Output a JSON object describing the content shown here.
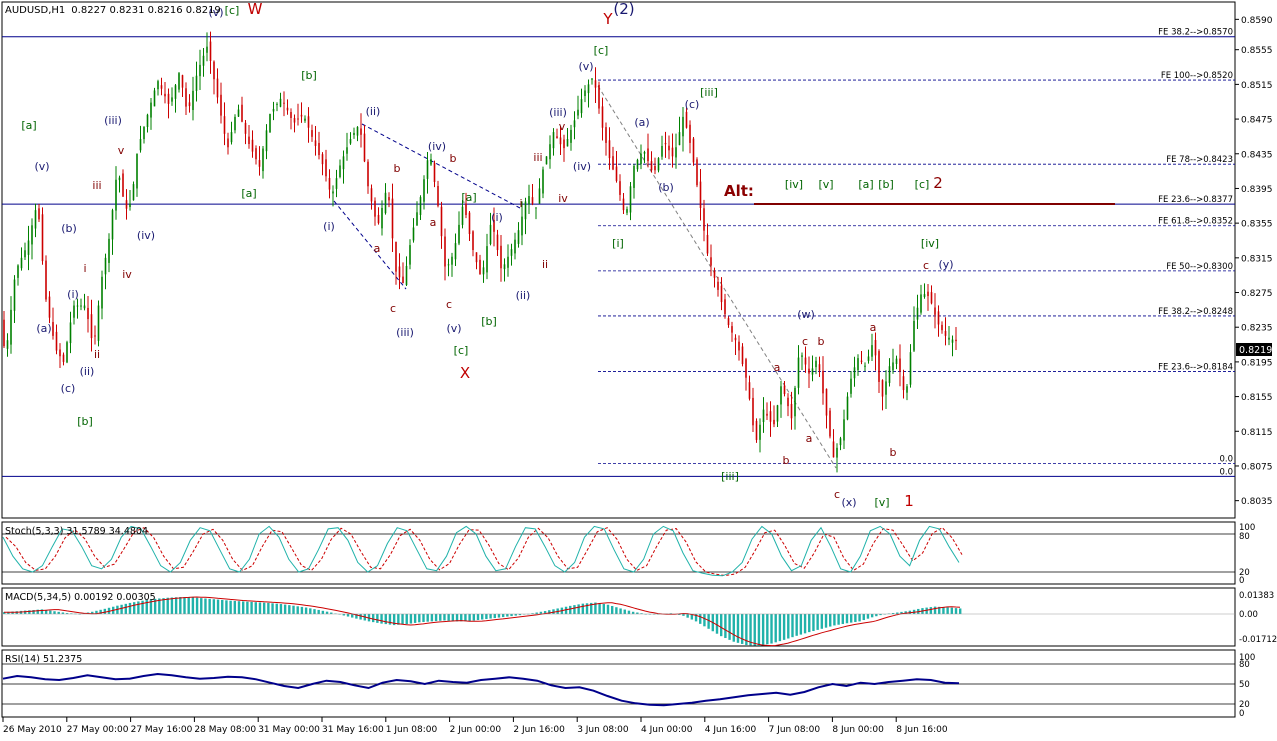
{
  "chart_data": {
    "type": "candlestick",
    "symbol_header": "AUDUSD,H1",
    "ohlc_header": "0.8227 0.8231 0.8216 0.8219",
    "current_price": "0.8219",
    "price_axis": {
      "ylim": [
        0.8015,
        0.861
      ],
      "ticks": [
        "0.8590",
        "0.8555",
        "0.8515",
        "0.8475",
        "0.8435",
        "0.8395",
        "0.8355",
        "0.8315",
        "0.8275",
        "0.8235",
        "0.8195",
        "0.8155",
        "0.8115",
        "0.8075",
        "0.8035"
      ]
    },
    "x_ticks": [
      "26 May 2010",
      "27 May 00:00",
      "27 May 16:00",
      "28 May 08:00",
      "31 May 00:00",
      "31 May 16:00",
      "1 Jun 08:00",
      "2 Jun 00:00",
      "2 Jun 16:00",
      "3 Jun 08:00",
      "4 Jun 00:00",
      "4 Jun 16:00",
      "7 Jun 08:00",
      "8 Jun 00:00",
      "8 Jun 16:00"
    ],
    "price_path": [
      [
        0,
        0.827
      ],
      [
        8,
        0.82
      ],
      [
        18,
        0.83
      ],
      [
        30,
        0.833
      ],
      [
        40,
        0.838
      ],
      [
        48,
        0.827
      ],
      [
        58,
        0.821
      ],
      [
        66,
        0.8195
      ],
      [
        76,
        0.826
      ],
      [
        88,
        0.826
      ],
      [
        96,
        0.821
      ],
      [
        104,
        0.829
      ],
      [
        112,
        0.834
      ],
      [
        120,
        0.842
      ],
      [
        128,
        0.837
      ],
      [
        134,
        0.838
      ],
      [
        140,
        0.844
      ],
      [
        150,
        0.848
      ],
      [
        160,
        0.852
      ],
      [
        172,
        0.849
      ],
      [
        182,
        0.853
      ],
      [
        190,
        0.848
      ],
      [
        200,
        0.853
      ],
      [
        210,
        0.856
      ],
      [
        220,
        0.85
      ],
      [
        230,
        0.844
      ],
      [
        240,
        0.849
      ],
      [
        250,
        0.845
      ],
      [
        262,
        0.842
      ],
      [
        272,
        0.848
      ],
      [
        284,
        0.85
      ],
      [
        296,
        0.847
      ],
      [
        306,
        0.848
      ],
      [
        316,
        0.845
      ],
      [
        326,
        0.842
      ],
      [
        334,
        0.8385
      ],
      [
        342,
        0.842
      ],
      [
        352,
        0.845
      ],
      [
        362,
        0.847
      ],
      [
        370,
        0.84
      ],
      [
        380,
        0.835
      ],
      [
        390,
        0.84
      ],
      [
        398,
        0.83
      ],
      [
        406,
        0.8285
      ],
      [
        414,
        0.834
      ],
      [
        424,
        0.839
      ],
      [
        432,
        0.844
      ],
      [
        440,
        0.838
      ],
      [
        448,
        0.83
      ],
      [
        456,
        0.832
      ],
      [
        466,
        0.838
      ],
      [
        474,
        0.833
      ],
      [
        484,
        0.829
      ],
      [
        494,
        0.836
      ],
      [
        504,
        0.83
      ],
      [
        514,
        0.8325
      ],
      [
        522,
        0.835
      ],
      [
        530,
        0.839
      ],
      [
        538,
        0.837
      ],
      [
        546,
        0.842
      ],
      [
        556,
        0.846
      ],
      [
        566,
        0.844
      ],
      [
        576,
        0.847
      ],
      [
        586,
        0.8505
      ],
      [
        596,
        0.8525
      ],
      [
        604,
        0.847
      ],
      [
        612,
        0.843
      ],
      [
        620,
        0.84
      ],
      [
        628,
        0.836
      ],
      [
        636,
        0.842
      ],
      [
        646,
        0.844
      ],
      [
        656,
        0.841
      ],
      [
        666,
        0.845
      ],
      [
        676,
        0.843
      ],
      [
        686,
        0.848
      ],
      [
        694,
        0.844
      ],
      [
        702,
        0.838
      ],
      [
        710,
        0.832
      ],
      [
        720,
        0.828
      ],
      [
        730,
        0.824
      ],
      [
        740,
        0.8215
      ],
      [
        750,
        0.817
      ],
      [
        758,
        0.81
      ],
      [
        766,
        0.814
      ],
      [
        776,
        0.812
      ],
      [
        784,
        0.817
      ],
      [
        794,
        0.813
      ],
      [
        802,
        0.821
      ],
      [
        812,
        0.818
      ],
      [
        820,
        0.82
      ],
      [
        828,
        0.814
      ],
      [
        836,
        0.8085
      ],
      [
        844,
        0.811
      ],
      [
        852,
        0.817
      ],
      [
        860,
        0.82
      ],
      [
        868,
        0.819
      ],
      [
        876,
        0.822
      ],
      [
        884,
        0.815
      ],
      [
        892,
        0.819
      ],
      [
        900,
        0.82
      ],
      [
        908,
        0.815
      ],
      [
        916,
        0.824
      ],
      [
        924,
        0.8275
      ],
      [
        932,
        0.827
      ],
      [
        940,
        0.824
      ],
      [
        948,
        0.8225
      ],
      [
        958,
        0.8219
      ]
    ],
    "fib_levels": [
      {
        "label": "FE 38.2-->0.8570",
        "price": 0.857,
        "style": "solid"
      },
      {
        "label": "FE 100-->0.8520",
        "price": 0.852,
        "style": "dashed"
      },
      {
        "label": "FE 78-->0.8423",
        "price": 0.8423,
        "style": "dashed"
      },
      {
        "label": "FE 23.6-->0.8377",
        "price": 0.8377,
        "style": "solid"
      },
      {
        "label": "FE 61.8-->0.8352",
        "price": 0.8352,
        "style": "dashed"
      },
      {
        "label": "FE 50-->0.8300",
        "price": 0.83,
        "style": "dashed"
      },
      {
        "label": "FE 38.2-->0.8248",
        "price": 0.8248,
        "style": "dashed"
      },
      {
        "label": "FE 23.6-->0.8184",
        "price": 0.8184,
        "style": "dashed"
      },
      {
        "label": "0.0",
        "price": 0.8078,
        "style": "dashed"
      },
      {
        "label": "0.0",
        "price": 0.8063,
        "style": "solid"
      }
    ],
    "alt_label": "Alt:",
    "wave_labels": [
      {
        "t": "(v)",
        "x": 216,
        "y": 16,
        "c": "#191970"
      },
      {
        "t": "[c]",
        "x": 232,
        "y": 14,
        "c": "#006400"
      },
      {
        "t": "W",
        "x": 255,
        "y": 14,
        "c": "#c00000"
      },
      {
        "t": "Y",
        "x": 608,
        "y": 24,
        "c": "#c00000"
      },
      {
        "t": "(2)",
        "x": 624,
        "y": 14,
        "c": "#191970"
      },
      {
        "t": "[c]",
        "x": 601,
        "y": 54,
        "c": "#006400"
      },
      {
        "t": "(v)",
        "x": 586,
        "y": 70,
        "c": "#191970"
      },
      {
        "t": "[iii]",
        "x": 709,
        "y": 96,
        "c": "#006400"
      },
      {
        "t": "(c)",
        "x": 692,
        "y": 108,
        "c": "#191970"
      },
      {
        "t": "[b]",
        "x": 309,
        "y": 79,
        "c": "#006400"
      },
      {
        "t": "[a]",
        "x": 29,
        "y": 129,
        "c": "#006400"
      },
      {
        "t": "(iii)",
        "x": 113,
        "y": 124,
        "c": "#191970"
      },
      {
        "t": "v",
        "x": 121,
        "y": 154,
        "c": "#800000"
      },
      {
        "t": "iii",
        "x": 97,
        "y": 189,
        "c": "#800000"
      },
      {
        "t": "(v)",
        "x": 42,
        "y": 170,
        "c": "#191970"
      },
      {
        "t": "(b)",
        "x": 69,
        "y": 232,
        "c": "#191970"
      },
      {
        "t": "(iv)",
        "x": 146,
        "y": 239,
        "c": "#191970"
      },
      {
        "t": "iv",
        "x": 127,
        "y": 278,
        "c": "#800000"
      },
      {
        "t": "i",
        "x": 85,
        "y": 272,
        "c": "#800000"
      },
      {
        "t": "(i)",
        "x": 73,
        "y": 298,
        "c": "#191970"
      },
      {
        "t": "(a)",
        "x": 44,
        "y": 332,
        "c": "#191970"
      },
      {
        "t": "(ii)",
        "x": 87,
        "y": 375,
        "c": "#191970"
      },
      {
        "t": "ii",
        "x": 97,
        "y": 358,
        "c": "#800000"
      },
      {
        "t": "(c)",
        "x": 68,
        "y": 392,
        "c": "#191970"
      },
      {
        "t": "[b]",
        "x": 85,
        "y": 425,
        "c": "#006400"
      },
      {
        "t": "[a]",
        "x": 249,
        "y": 197,
        "c": "#006400"
      },
      {
        "t": "(ii)",
        "x": 373,
        "y": 115,
        "c": "#191970"
      },
      {
        "t": "(iv)",
        "x": 437,
        "y": 150,
        "c": "#191970"
      },
      {
        "t": "b",
        "x": 453,
        "y": 162,
        "c": "#800000"
      },
      {
        "t": "b",
        "x": 397,
        "y": 172,
        "c": "#800000"
      },
      {
        "t": "(i)",
        "x": 329,
        "y": 230,
        "c": "#191970"
      },
      {
        "t": "a",
        "x": 377,
        "y": 252,
        "c": "#800000"
      },
      {
        "t": "a",
        "x": 433,
        "y": 226,
        "c": "#800000"
      },
      {
        "t": "c",
        "x": 393,
        "y": 312,
        "c": "#800000"
      },
      {
        "t": "(iii)",
        "x": 405,
        "y": 336,
        "c": "#191970"
      },
      {
        "t": "c",
        "x": 449,
        "y": 308,
        "c": "#800000"
      },
      {
        "t": "(v)",
        "x": 454,
        "y": 332,
        "c": "#191970"
      },
      {
        "t": "[c]",
        "x": 461,
        "y": 354,
        "c": "#006400"
      },
      {
        "t": "X",
        "x": 465,
        "y": 378,
        "c": "#c00000"
      },
      {
        "t": "[a]",
        "x": 469,
        "y": 201,
        "c": "#006400"
      },
      {
        "t": "(i)",
        "x": 497,
        "y": 221,
        "c": "#191970"
      },
      {
        "t": "[b]",
        "x": 489,
        "y": 325,
        "c": "#006400"
      },
      {
        "t": "(ii)",
        "x": 523,
        "y": 299,
        "c": "#191970"
      },
      {
        "t": "ii",
        "x": 545,
        "y": 268,
        "c": "#800000"
      },
      {
        "t": "i",
        "x": 521,
        "y": 207,
        "c": "#800000"
      },
      {
        "t": "iv",
        "x": 563,
        "y": 202,
        "c": "#800000"
      },
      {
        "t": "iii",
        "x": 538,
        "y": 161,
        "c": "#800000"
      },
      {
        "t": "(iii)",
        "x": 558,
        "y": 116,
        "c": "#191970"
      },
      {
        "t": "v",
        "x": 562,
        "y": 130,
        "c": "#800000"
      },
      {
        "t": "(iv)",
        "x": 582,
        "y": 170,
        "c": "#191970"
      },
      {
        "t": "(a)",
        "x": 642,
        "y": 126,
        "c": "#191970"
      },
      {
        "t": "(b)",
        "x": 666,
        "y": 191,
        "c": "#191970"
      },
      {
        "t": "[i]",
        "x": 618,
        "y": 247,
        "c": "#006400"
      },
      {
        "t": "[iv]",
        "x": 794,
        "y": 188,
        "c": "#006400"
      },
      {
        "t": "[v]",
        "x": 826,
        "y": 188,
        "c": "#006400"
      },
      {
        "t": "[a]",
        "x": 866,
        "y": 188,
        "c": "#006400"
      },
      {
        "t": "[b]",
        "x": 886,
        "y": 188,
        "c": "#006400"
      },
      {
        "t": "[c]",
        "x": 922,
        "y": 188,
        "c": "#006400"
      },
      {
        "t": "2",
        "x": 938,
        "y": 188,
        "c": "#8b0000"
      },
      {
        "t": "[iv]",
        "x": 930,
        "y": 247,
        "c": "#006400"
      },
      {
        "t": "c",
        "x": 926,
        "y": 269,
        "c": "#800000"
      },
      {
        "t": "(y)",
        "x": 946,
        "y": 268,
        "c": "#191970"
      },
      {
        "t": "(w)",
        "x": 806,
        "y": 318,
        "c": "#191970"
      },
      {
        "t": "c",
        "x": 805,
        "y": 345,
        "c": "#800000"
      },
      {
        "t": "b",
        "x": 821,
        "y": 345,
        "c": "#800000"
      },
      {
        "t": "a",
        "x": 873,
        "y": 331,
        "c": "#800000"
      },
      {
        "t": "a",
        "x": 777,
        "y": 371,
        "c": "#800000"
      },
      {
        "t": "a",
        "x": 809,
        "y": 442,
        "c": "#800000"
      },
      {
        "t": "b",
        "x": 786,
        "y": 464,
        "c": "#800000"
      },
      {
        "t": "b",
        "x": 893,
        "y": 456,
        "c": "#800000"
      },
      {
        "t": "[iii]",
        "x": 730,
        "y": 480,
        "c": "#006400"
      },
      {
        "t": "c",
        "x": 837,
        "y": 498,
        "c": "#800000"
      },
      {
        "t": "(x)",
        "x": 849,
        "y": 506,
        "c": "#191970"
      },
      {
        "t": "[v]",
        "x": 882,
        "y": 506,
        "c": "#006400"
      },
      {
        "t": "1",
        "x": 909,
        "y": 506,
        "c": "#c00000"
      }
    ],
    "stochastic": {
      "title": "Stoch(5,3,3) 31.5789 34.4804",
      "levels": [
        "100",
        "80",
        "20",
        "0"
      ],
      "main_color": "#20b2aa",
      "signal_color": "#cc0000",
      "values": [
        75,
        45,
        25,
        20,
        30,
        60,
        88,
        85,
        60,
        30,
        25,
        40,
        75,
        92,
        88,
        60,
        30,
        20,
        35,
        70,
        90,
        85,
        55,
        25,
        20,
        40,
        80,
        92,
        75,
        40,
        20,
        25,
        55,
        88,
        90,
        70,
        35,
        20,
        30,
        65,
        90,
        85,
        55,
        25,
        22,
        45,
        82,
        92,
        80,
        45,
        22,
        25,
        60,
        90,
        88,
        60,
        30,
        20,
        35,
        75,
        92,
        88,
        55,
        25,
        20,
        40,
        80,
        92,
        85,
        50,
        22,
        18,
        15,
        14,
        20,
        35,
        72,
        92,
        80,
        45,
        22,
        30,
        70,
        90,
        60,
        25,
        20,
        45,
        85,
        92,
        80,
        45,
        30,
        70,
        92,
        88,
        60,
        35
      ]
    },
    "macd": {
      "title": "MACD(5,34,5) 0.00192 0.00305",
      "scale": [
        "0.01383",
        "0.00",
        "-0.01712"
      ],
      "bar_color": "#20b2aa",
      "signal_color": "#cc0000",
      "values": [
        0.001,
        0.0015,
        0.002,
        0.0025,
        0.0015,
        0.0005,
        0.0,
        0.0012,
        0.0028,
        0.0045,
        0.006,
        0.0072,
        0.0082,
        0.0088,
        0.0092,
        0.009,
        0.0084,
        0.0078,
        0.0072,
        0.0068,
        0.0064,
        0.006,
        0.0054,
        0.0045,
        0.0035,
        0.0022,
        0.0008,
        -0.0008,
        -0.0025,
        -0.004,
        -0.0052,
        -0.006,
        -0.0055,
        -0.0045,
        -0.004,
        -0.0035,
        -0.004,
        -0.0038,
        -0.003,
        -0.0022,
        -0.0014,
        -0.0006,
        0.0004,
        0.0016,
        0.003,
        0.0044,
        0.0056,
        0.0062,
        0.005,
        0.003,
        0.0012,
        0.0,
        -0.0002,
        0.0004,
        -0.001,
        -0.004,
        -0.008,
        -0.012,
        -0.015,
        -0.0168,
        -0.0172,
        -0.016,
        -0.014,
        -0.0118,
        -0.0098,
        -0.008,
        -0.0062,
        -0.005,
        -0.004,
        -0.0018,
        0.0,
        0.0008,
        0.0018,
        0.0032,
        0.004,
        0.0036,
        0.003
      ]
    },
    "rsi": {
      "title": "RSI(14) 51.2375",
      "levels": [
        "100",
        "80",
        "50",
        "20",
        "0"
      ],
      "line_color": "#00008b",
      "values": [
        58,
        62,
        60,
        57,
        56,
        59,
        63,
        60,
        57,
        58,
        62,
        65,
        63,
        60,
        58,
        59,
        61,
        60,
        57,
        52,
        47,
        44,
        50,
        55,
        53,
        48,
        44,
        52,
        56,
        54,
        50,
        55,
        53,
        52,
        56,
        58,
        60,
        58,
        55,
        48,
        44,
        45,
        40,
        32,
        25,
        21,
        19,
        18,
        20,
        22,
        25,
        27,
        30,
        33,
        35,
        37,
        34,
        38,
        45,
        50,
        47,
        52,
        50,
        53,
        55,
        57,
        56,
        52,
        51
      ]
    }
  }
}
